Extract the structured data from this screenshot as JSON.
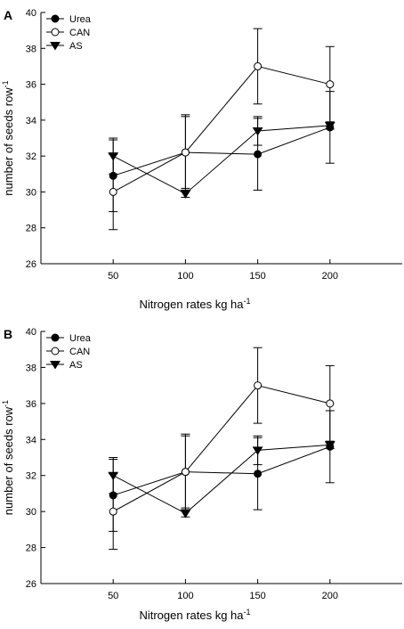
{
  "chart_data": [
    {
      "type": "line",
      "panel_label": "A",
      "xlabel": "Nitrogen rates kg ha",
      "xlabel_sup": "-1",
      "ylabel": "number of seeds row",
      "ylabel_sup": "-1",
      "x": [
        50,
        100,
        150,
        200
      ],
      "x_ticks": [
        50,
        100,
        150,
        200
      ],
      "xlim": [
        0,
        250
      ],
      "ylim": [
        26,
        40
      ],
      "y_ticks": [
        26,
        28,
        30,
        32,
        34,
        36,
        38,
        40
      ],
      "legend_position": "top-left",
      "series": [
        {
          "name": "Urea",
          "marker": "filled-circle",
          "values": [
            30.9,
            32.2,
            32.1,
            33.6
          ],
          "errors": [
            2.0,
            2.0,
            2.0,
            2.0
          ]
        },
        {
          "name": "CAN",
          "marker": "open-circle",
          "values": [
            30.0,
            32.2,
            37.0,
            36.0
          ],
          "errors": [
            2.1,
            2.1,
            2.1,
            2.1
          ]
        },
        {
          "name": "AS",
          "marker": "filled-triangle-down",
          "values": [
            32.0,
            29.9,
            33.4,
            33.7
          ],
          "errors": [
            1.0,
            0.2,
            0.8,
            0.2
          ]
        }
      ]
    },
    {
      "type": "line",
      "panel_label": "B",
      "xlabel": "Nitrogen rates kg ha",
      "xlabel_sup": "-1",
      "ylabel": "number of seeds row",
      "ylabel_sup": "-1",
      "x": [
        50,
        100,
        150,
        200
      ],
      "x_ticks": [
        50,
        100,
        150,
        200
      ],
      "xlim": [
        0,
        250
      ],
      "ylim": [
        26,
        40
      ],
      "y_ticks": [
        26,
        28,
        30,
        32,
        34,
        36,
        38,
        40
      ],
      "legend_position": "top-left",
      "series": [
        {
          "name": "Urea",
          "marker": "filled-circle",
          "values": [
            30.9,
            32.2,
            32.1,
            33.6
          ],
          "errors": [
            2.0,
            2.0,
            2.0,
            2.0
          ]
        },
        {
          "name": "CAN",
          "marker": "open-circle",
          "values": [
            30.0,
            32.2,
            37.0,
            36.0
          ],
          "errors": [
            2.1,
            2.1,
            2.1,
            2.1
          ]
        },
        {
          "name": "AS",
          "marker": "filled-triangle-down",
          "values": [
            32.0,
            29.9,
            33.4,
            33.7
          ],
          "errors": [
            1.0,
            0.2,
            0.8,
            0.2
          ]
        }
      ]
    }
  ]
}
